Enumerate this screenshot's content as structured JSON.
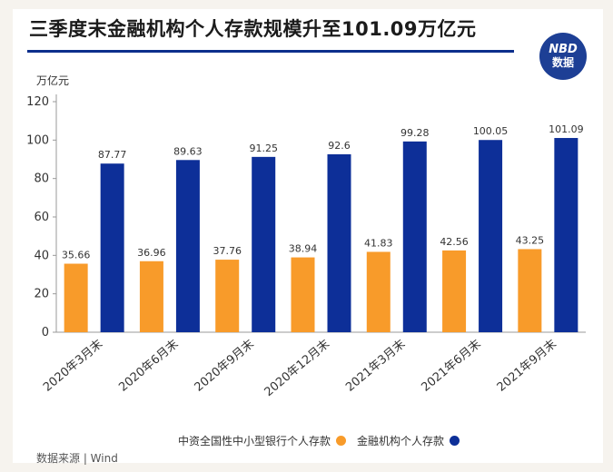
{
  "header": {
    "title": "三季度末金融机构个人存款规模升至101.09万亿元",
    "logo_line1": "NBD",
    "logo_line2": "数据"
  },
  "unit_label": "万亿元",
  "source": "数据来源 | Wind",
  "colors": {
    "series_small_banks": "#f89b2a",
    "series_financial_institutions": "#0d2f98",
    "title_rule": "#0d2f8c"
  },
  "chart_data": {
    "type": "bar",
    "categories": [
      "2020年3月末",
      "2020年6月末",
      "2020年9月末",
      "2020年12月末",
      "2021年3月末",
      "2021年6月末",
      "2021年9月末"
    ],
    "series": [
      {
        "name": "中资全国性中小型银行个人存款",
        "values": [
          35.66,
          36.96,
          37.76,
          38.94,
          41.83,
          42.56,
          43.25
        ]
      },
      {
        "name": "金融机构个人存款",
        "values": [
          87.77,
          89.63,
          91.25,
          92.6,
          99.28,
          100.05,
          101.09
        ]
      }
    ],
    "value_labels": [
      [
        "35.66",
        "36.96",
        "37.76",
        "38.94",
        "41.83",
        "42.56",
        "43.25"
      ],
      [
        "87.77",
        "89.63",
        "91.25",
        "92.6",
        "99.28",
        "100.05",
        "101.09"
      ]
    ],
    "yticks": [
      "0",
      "20",
      "40",
      "60",
      "80",
      "100",
      "120"
    ],
    "ylim": [
      0,
      120
    ],
    "grid": false,
    "legend_position": "bottom"
  }
}
